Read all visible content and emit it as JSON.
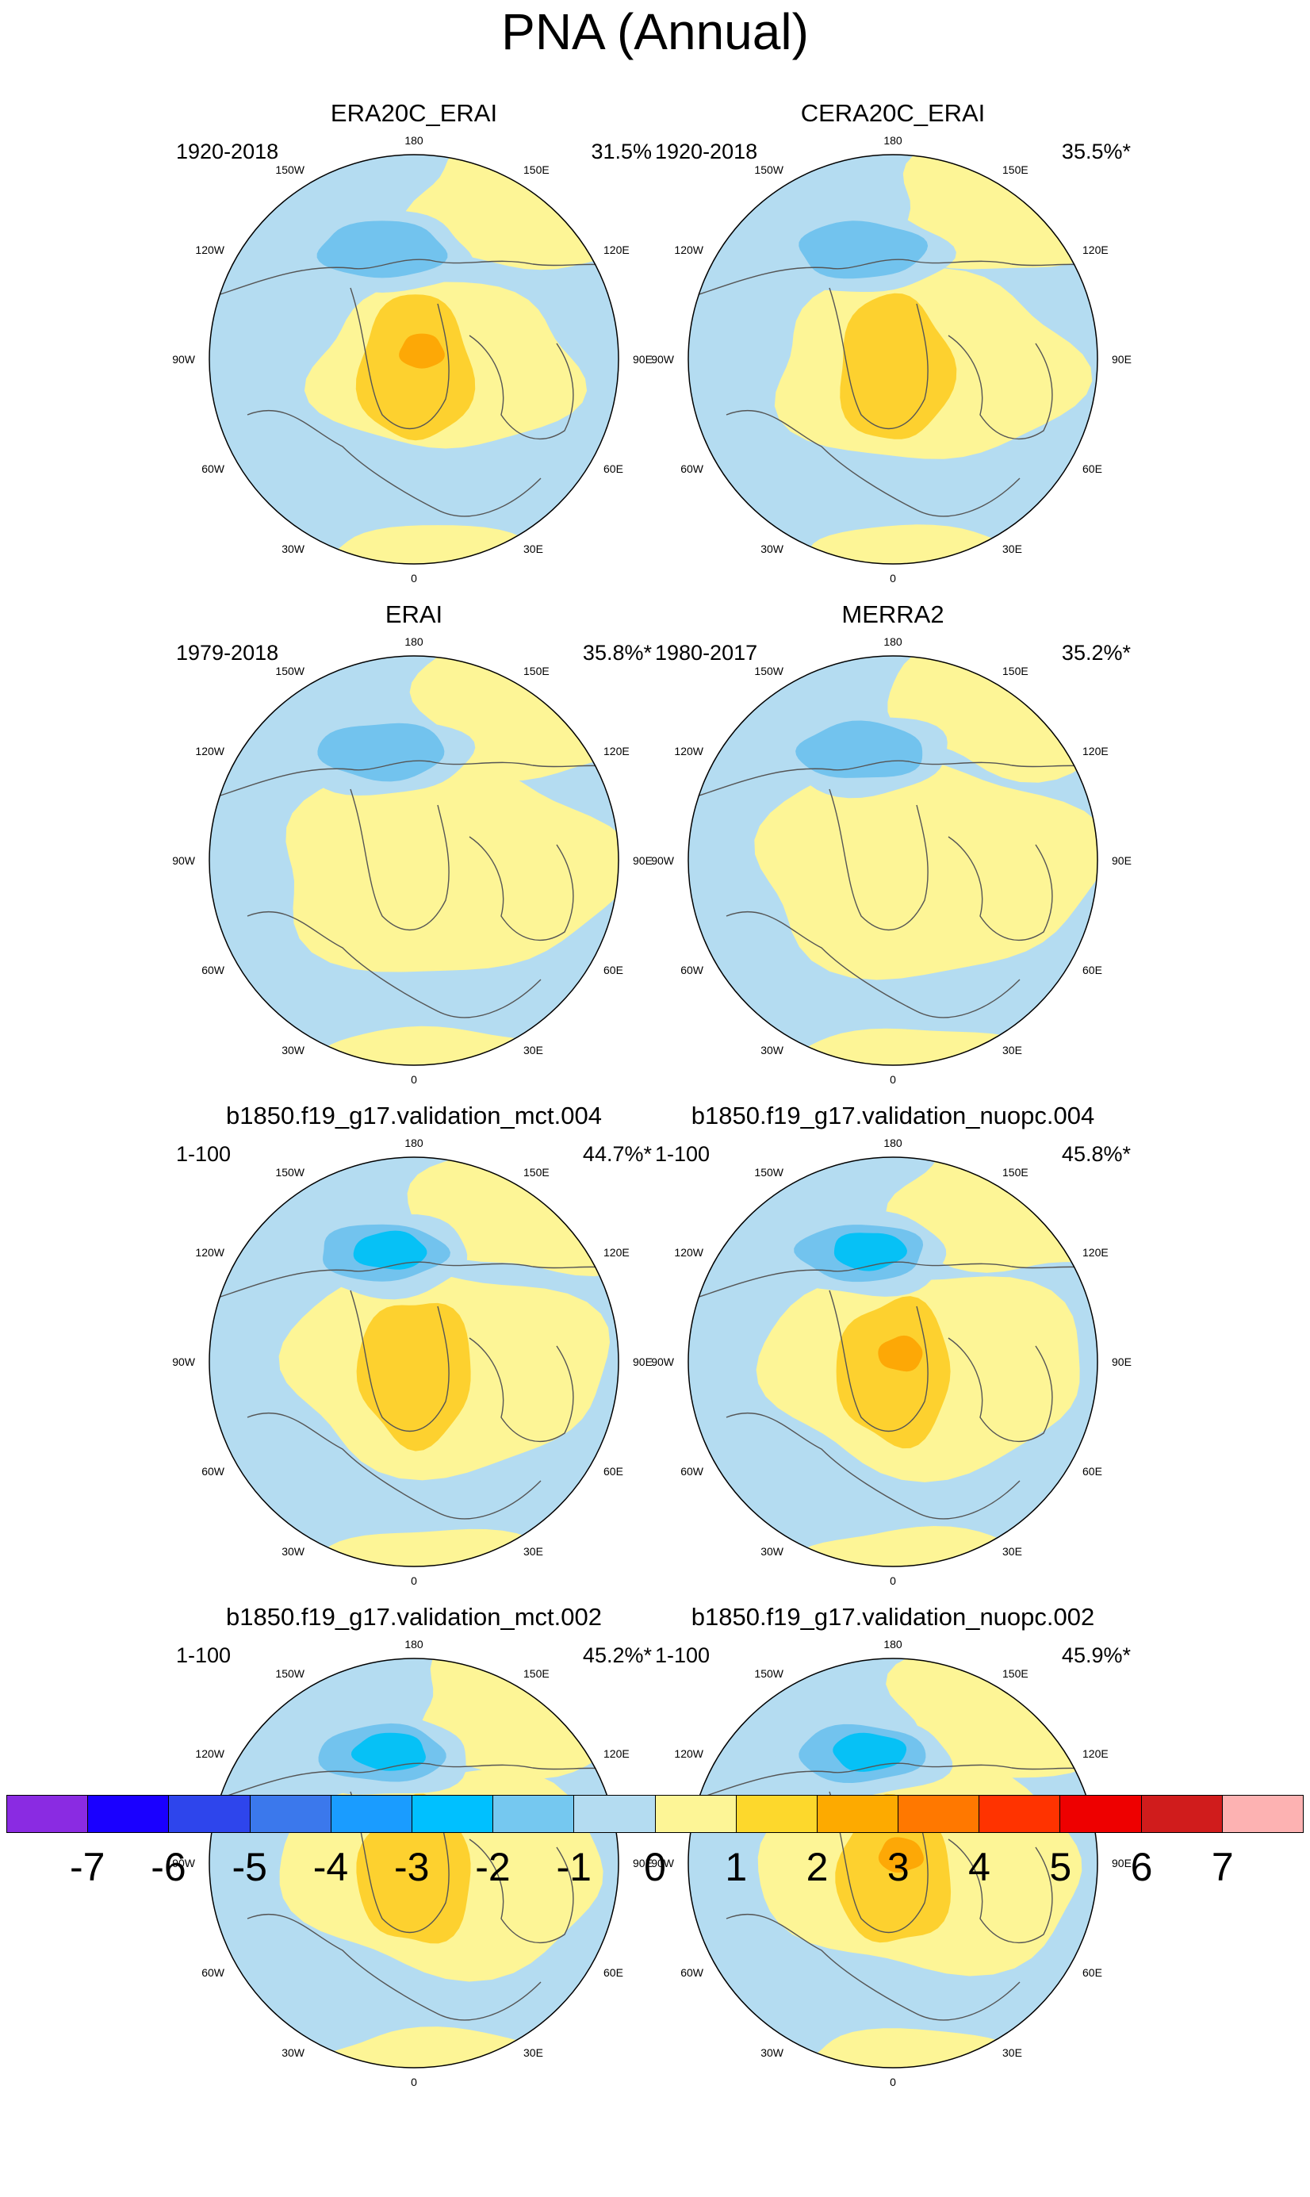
{
  "title": "PNA (Annual)",
  "colors": {
    "neg1": "#b4dcf1",
    "neg2": "#72c3ee",
    "neg3": "#06c1f6",
    "pos1": "#fdf596",
    "pos2": "#fdd12f",
    "pos3": "#fda806",
    "coast": "#555555",
    "outline": "#000000"
  },
  "longitude_labels": [
    "180",
    "150E",
    "120E",
    "90E",
    "60E",
    "30E",
    "0",
    "30W",
    "60W",
    "90W",
    "120W",
    "150W"
  ],
  "panels": [
    {
      "title": "ERA20C_ERAI",
      "period": "1920-2018",
      "variance": "31.5%",
      "blueLevel": 2,
      "posLevel": 3,
      "posExtent": 0.7,
      "posShift": 0
    },
    {
      "title": "CERA20C_ERAI",
      "period": "1920-2018",
      "variance": "35.5%*",
      "blueLevel": 2,
      "posLevel": 2,
      "posExtent": 0.8,
      "posShift": 0
    },
    {
      "title": "ERAI",
      "period": "1979-2018",
      "variance": "35.8%*",
      "blueLevel": 2,
      "posLevel": 1,
      "posExtent": 0.9,
      "posShift": 0
    },
    {
      "title": "MERRA2",
      "period": "1980-2017",
      "variance": "35.2%*",
      "blueLevel": 2,
      "posLevel": 1,
      "posExtent": 0.9,
      "posShift": 0
    },
    {
      "title": "b1850.f19_g17.validation_mct.004",
      "period": "1-100",
      "variance": "44.7%*",
      "blueLevel": 3,
      "posLevel": 2,
      "posExtent": 0.85,
      "posShift": 0
    },
    {
      "title": "b1850.f19_g17.validation_nuopc.004",
      "period": "1-100",
      "variance": "45.8%*",
      "blueLevel": 3,
      "posLevel": 3,
      "posExtent": 0.85,
      "posShift": 0
    },
    {
      "title": "b1850.f19_g17.validation_mct.002",
      "period": "1-100",
      "variance": "45.2%*",
      "blueLevel": 3,
      "posLevel": 2,
      "posExtent": 0.85,
      "posShift": 0
    },
    {
      "title": "b1850.f19_g17.validation_nuopc.002",
      "period": "1-100",
      "variance": "45.9%*",
      "blueLevel": 3,
      "posLevel": 3,
      "posExtent": 0.85,
      "posShift": 0
    }
  ],
  "colorbar": {
    "colors": [
      "#8a2be2",
      "#1a00ff",
      "#2e45ec",
      "#3b78ec",
      "#1a9cff",
      "#00c0ff",
      "#75c8f0",
      "#b4dcf1",
      "#fdf596",
      "#fdd82c",
      "#fdaa00",
      "#ff7800",
      "#ff3300",
      "#ee0000",
      "#d01c1c",
      "#fdb2b2"
    ],
    "labels": [
      "-7",
      "-6",
      "-5",
      "-4",
      "-3",
      "-2",
      "-1",
      "0",
      "1",
      "2",
      "3",
      "4",
      "5",
      "6",
      "7"
    ]
  }
}
